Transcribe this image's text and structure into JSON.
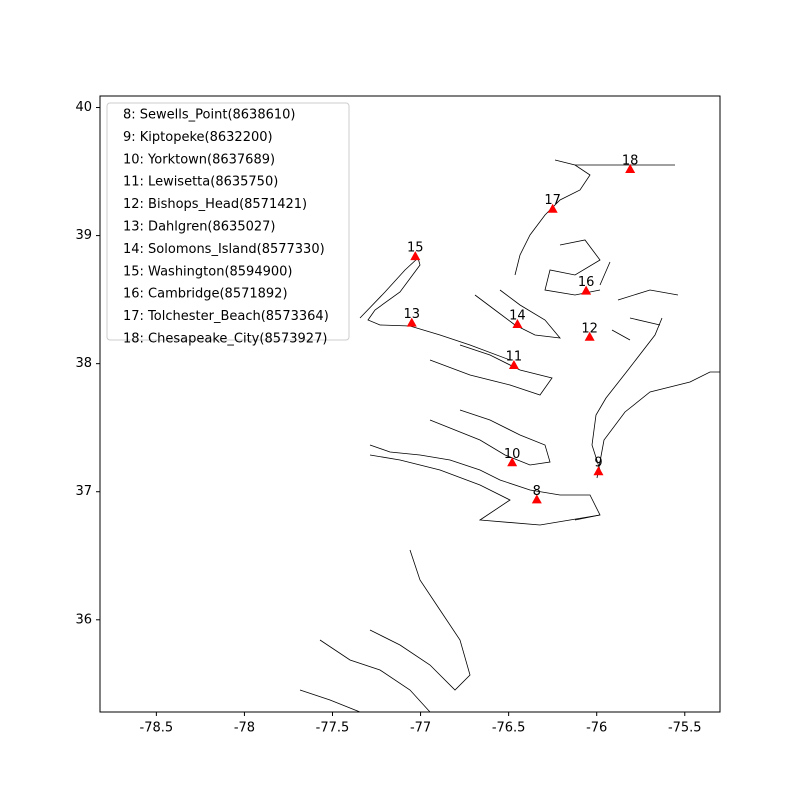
{
  "chart_data": {
    "type": "scatter",
    "x": [
      -76.34,
      -75.99,
      -76.48,
      -76.47,
      -76.04,
      -77.05,
      -76.45,
      -77.03,
      -76.06,
      -76.25,
      -75.81
    ],
    "y": [
      36.94,
      37.16,
      37.23,
      37.99,
      38.21,
      38.32,
      38.31,
      38.84,
      38.57,
      39.21,
      39.52
    ],
    "labels": [
      "8",
      "9",
      "10",
      "11",
      "12",
      "13",
      "14",
      "15",
      "16",
      "17",
      "18"
    ],
    "color": "#ff0000",
    "legend": [
      "8: Sewells_Point(8638610)",
      "9: Kiptopeke(8632200)",
      "10: Yorktown(8637689)",
      "11: Lewisetta(8635750)",
      "12: Bishops_Head(8571421)",
      "13: Dahlgren(8635027)",
      "14: Solomons_Island(8577330)",
      "15: Washington(8594900)",
      "16: Cambridge(8571892)",
      "17: Tolchester_Beach(8573364)",
      "18: Chesapeake_City(8573927)"
    ],
    "legend_position": "upper left",
    "xlim": [
      -78.82,
      -75.3
    ],
    "ylim": [
      35.28,
      40.09
    ],
    "xticks": [
      -78.5,
      -78.0,
      -77.5,
      -77.0,
      -76.5,
      -76.0,
      -75.5
    ],
    "yticks": [
      36,
      37,
      38,
      39,
      40
    ]
  }
}
